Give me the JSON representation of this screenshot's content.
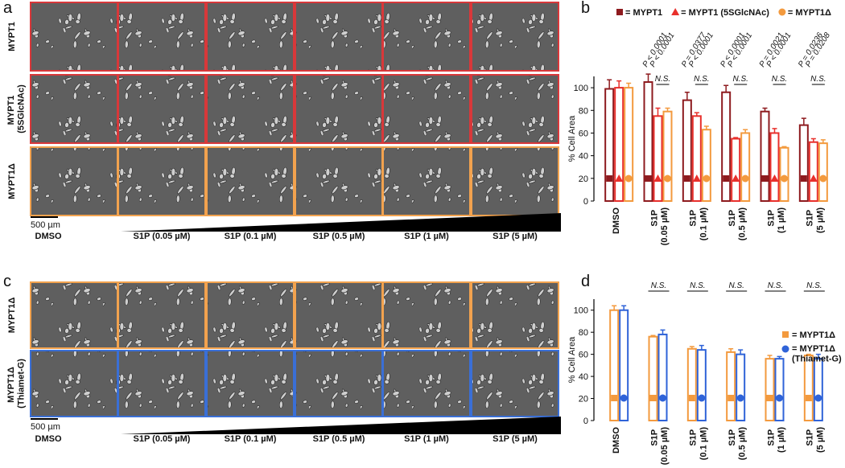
{
  "panels": [
    {
      "label": "a",
      "scale_bar": "500 µm",
      "rows": [
        {
          "label": "MYPT1",
          "color": "#d8383a"
        },
        {
          "label": "MYPT1 (5SGlcNAc)",
          "color": "#d8383a"
        },
        {
          "label": "MYPT1Δ",
          "color": "#f2a24e"
        }
      ],
      "columns": [
        "DMSO",
        "S1P (0.05 µM)",
        "S1P (0.1 µM)",
        "S1P (0.5 µM)",
        "S1P (1 µM)",
        "S1P (5 µM)"
      ]
    },
    {
      "label": "c",
      "scale_bar": "500 µm",
      "rows": [
        {
          "label": "MYPT1Δ",
          "color": "#f2a24e"
        },
        {
          "label": "MYPT1Δ (Thiamet-G)",
          "color": "#3a6fd6"
        }
      ],
      "columns": [
        "DMSO",
        "S1P (0.05 µM)",
        "S1P (0.1 µM)",
        "S1P (0.5 µM)",
        "S1P (1 µM)",
        "S1P (5 µM)"
      ]
    }
  ],
  "chart_data": [
    {
      "type": "bar",
      "panel_label": "b",
      "ylabel": "% Cell Area",
      "legend": "top",
      "categories": [
        "DMSO",
        "S1P (0.05 µM)",
        "S1P (0.1 µM)",
        "S1P (0.5 µM)",
        "S1P (1 µM)",
        "S1P (5 µM)"
      ],
      "series": [
        {
          "name": "= MYPT1",
          "color": "#8e1b1f",
          "marker": "square",
          "values": [
            99,
            105,
            89,
            96,
            79,
            67
          ],
          "errors": [
            8,
            7,
            7,
            6,
            3,
            6
          ]
        },
        {
          "name": "= MYPT1 (5SGlcNAc)",
          "color": "#e8302c",
          "marker": "triangle",
          "values": [
            100,
            75,
            75,
            55,
            60,
            52
          ],
          "errors": [
            6,
            7,
            3,
            1,
            4,
            3
          ]
        },
        {
          "name": "= MYPT1Δ",
          "color": "#f39a3e",
          "marker": "circle",
          "values": [
            100,
            79,
            63,
            60,
            47,
            51
          ],
          "errors": [
            4,
            3,
            3,
            3,
            1,
            3
          ]
        }
      ],
      "ylim": [
        0,
        110
      ],
      "yticks": [
        0,
        20,
        40,
        60,
        80,
        100
      ],
      "annotations": [
        null,
        {
          "p_values": [
            "P < 0.0001",
            "P < 0.0001"
          ],
          "ns": "N.S."
        },
        {
          "p_values": [
            "P = 0.0377",
            "P < 0.0001"
          ],
          "ns": "N.S."
        },
        {
          "p_values": [
            "P < 0.0001",
            "P < 0.0001"
          ],
          "ns": "N.S."
        },
        {
          "p_values": [
            "P = 0.0021",
            "P < 0.0001"
          ],
          "ns": "N.S."
        },
        {
          "p_values": [
            "P = 0.0236",
            "P = 0.0208"
          ],
          "ns": "N.S."
        }
      ]
    },
    {
      "type": "bar",
      "panel_label": "d",
      "ylabel": "% Cell Area",
      "legend": "right",
      "categories": [
        "DMSO",
        "S1P (0.05 µM)",
        "S1P (0.1 µM)",
        "S1P (0.5 µM)",
        "S1P (1 µM)",
        "S1P (5 µM)"
      ],
      "series": [
        {
          "name": "= MYPT1Δ",
          "color": "#f39a3e",
          "marker": "square",
          "values": [
            100,
            76,
            65,
            62,
            56,
            59
          ],
          "errors": [
            4,
            1,
            2,
            3,
            3,
            1
          ]
        },
        {
          "name": "= MYPT1Δ (Thiamet-G)",
          "color": "#2f63d8",
          "marker": "circle",
          "values": [
            100,
            78,
            64,
            60,
            56,
            56
          ],
          "errors": [
            4,
            4,
            4,
            4,
            2,
            4
          ]
        }
      ],
      "ylim": [
        0,
        110
      ],
      "yticks": [
        0,
        20,
        40,
        60,
        80,
        100
      ],
      "annotations": [
        null,
        {
          "ns": "N.S."
        },
        {
          "ns": "N.S."
        },
        {
          "ns": "N.S."
        },
        {
          "ns": "N.S."
        },
        {
          "ns": "N.S."
        }
      ]
    }
  ]
}
